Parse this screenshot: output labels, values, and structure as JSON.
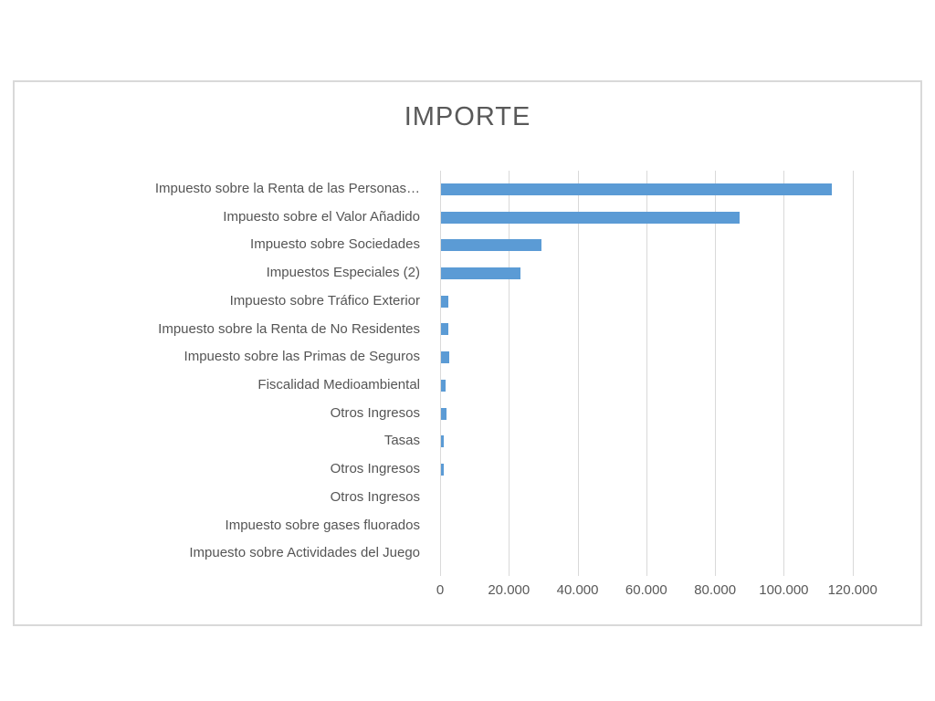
{
  "chart_data": {
    "type": "bar",
    "orientation": "horizontal",
    "title": "IMPORTE",
    "categories": [
      "Impuesto sobre la Renta de las Personas…",
      "Impuesto sobre el Valor Añadido",
      "Impuesto sobre Sociedades",
      "Impuestos Especiales (2)",
      "Impuesto sobre Tráfico Exterior",
      "Impuesto sobre la Renta de No Residentes",
      "Impuesto sobre las Primas de Seguros",
      "Fiscalidad Medioambiental",
      "Otros Ingresos",
      "Tasas",
      "Otros Ingresos",
      "Otros Ingresos",
      "Impuesto sobre gases fluorados",
      "Impuesto sobre Actividades del Juego"
    ],
    "values": [
      113800,
      86800,
      29200,
      23100,
      2200,
      2200,
      2400,
      1400,
      1500,
      900,
      900,
      0,
      0,
      0
    ],
    "xlabel": "",
    "ylabel": "",
    "xlim": [
      0,
      140000
    ],
    "x_tick_step": 20000,
    "x_tick_labels": [
      "0",
      "20.000",
      "40.000",
      "60.000",
      "80.000",
      "100.000",
      "120.000"
    ],
    "grid": true,
    "legend_position": "none",
    "colors": {
      "bar": "#5B9BD5",
      "title_text": "#595959",
      "axis_text": "#595959",
      "category_text": "#555555",
      "gridline": "#D9D9D9",
      "frame_border": "#D9D9D9",
      "background": "#FFFFFF"
    }
  }
}
